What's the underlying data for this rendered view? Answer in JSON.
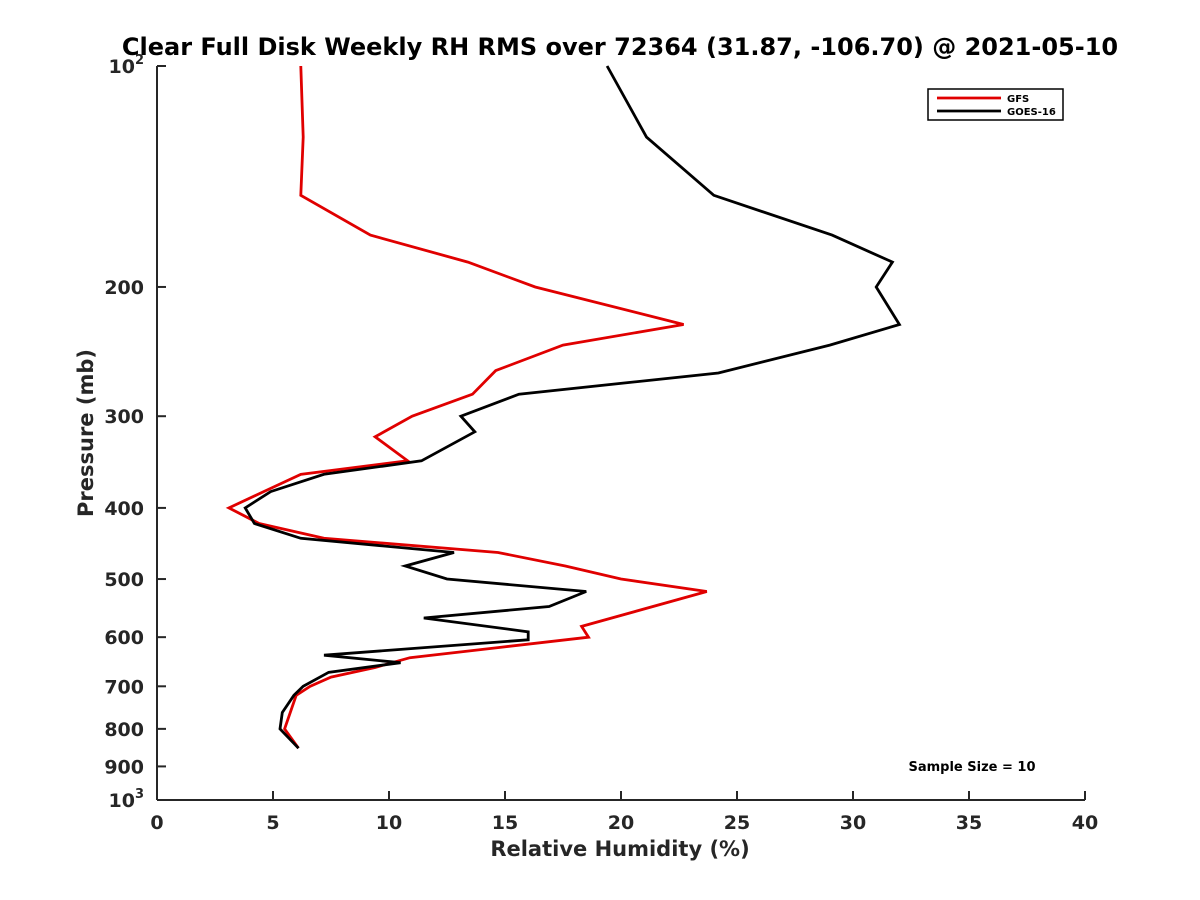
{
  "chart_data": {
    "type": "line",
    "title": "Clear Full Disk Weekly RH RMS over 72364 (31.87, -106.70) @ 2021-05-10",
    "xlabel": "Relative Humidity (%)",
    "ylabel": "Pressure (mb)",
    "xlim": [
      0,
      40
    ],
    "ylim": [
      100,
      1000
    ],
    "y_scale": "log",
    "y_reversed": true,
    "grid": false,
    "legend_position": "top-right",
    "x_ticks": [
      {
        "value": 0,
        "label": "0"
      },
      {
        "value": 5,
        "label": "5"
      },
      {
        "value": 10,
        "label": "10"
      },
      {
        "value": 15,
        "label": "15"
      },
      {
        "value": 20,
        "label": "20"
      },
      {
        "value": 25,
        "label": "25"
      },
      {
        "value": 30,
        "label": "30"
      },
      {
        "value": 35,
        "label": "35"
      },
      {
        "value": 40,
        "label": "40"
      }
    ],
    "y_ticks": [
      {
        "value": 100,
        "base": "10",
        "exp": "2"
      },
      {
        "value": 200,
        "base": "200",
        "exp": ""
      },
      {
        "value": 300,
        "base": "300",
        "exp": ""
      },
      {
        "value": 400,
        "base": "400",
        "exp": ""
      },
      {
        "value": 500,
        "base": "500",
        "exp": ""
      },
      {
        "value": 600,
        "base": "600",
        "exp": ""
      },
      {
        "value": 700,
        "base": "700",
        "exp": ""
      },
      {
        "value": 800,
        "base": "800",
        "exp": ""
      },
      {
        "value": 900,
        "base": "900",
        "exp": ""
      },
      {
        "value": 1000,
        "base": "10",
        "exp": "3"
      }
    ],
    "series": [
      {
        "name": "GFS",
        "color": "#e00000",
        "x": [
          6.2,
          6.3,
          6.2,
          9.2,
          13.4,
          16.3,
          22.7,
          17.5,
          14.6,
          13.6,
          11.0,
          9.4,
          10.8,
          6.2,
          4.6,
          3.1,
          4.4,
          7.2,
          14.7,
          17.6,
          20.0,
          23.7,
          18.3,
          18.6,
          14.7,
          10.9,
          9.4,
          7.5,
          6.6,
          6.0,
          5.5,
          6.1
        ],
        "y": [
          100,
          125,
          150,
          170,
          185,
          200,
          225,
          240,
          260,
          280,
          300,
          320,
          345,
          360,
          380,
          400,
          420,
          440,
          460,
          480,
          500,
          520,
          580,
          600,
          620,
          640,
          660,
          680,
          700,
          720,
          800,
          850
        ]
      },
      {
        "name": "GOES-16",
        "color": "#000000",
        "x": [
          19.4,
          21.1,
          24.0,
          29.1,
          31.7,
          31.0,
          32.0,
          29.0,
          24.2,
          15.6,
          13.1,
          13.7,
          11.4,
          7.2,
          4.9,
          3.8,
          4.2,
          6.2,
          12.8,
          10.7,
          12.5,
          18.5,
          16.9,
          11.5,
          16.0,
          16.0,
          7.2,
          10.5,
          7.4,
          6.3,
          5.9,
          5.4,
          5.3,
          6.1
        ],
        "y": [
          100,
          125,
          150,
          170,
          185,
          200,
          225,
          240,
          262,
          280,
          300,
          315,
          345,
          360,
          380,
          400,
          420,
          440,
          460,
          480,
          500,
          520,
          545,
          565,
          590,
          605,
          635,
          650,
          670,
          700,
          720,
          760,
          800,
          850
        ]
      }
    ],
    "annotation": "Sample Size = 10"
  }
}
